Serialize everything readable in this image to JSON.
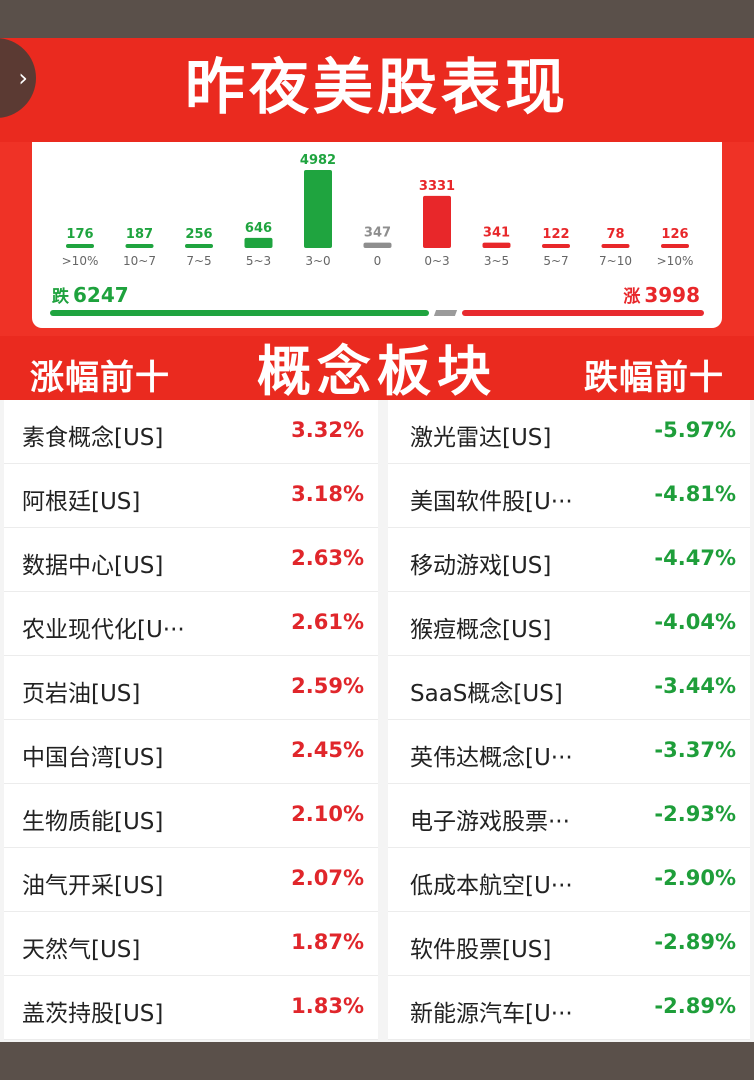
{
  "header": {
    "title": "昨夜美股表现",
    "back_label": "›"
  },
  "colors": {
    "red": "#e8272a",
    "green": "#1fa43f",
    "gray": "#8e8e8e",
    "banner": "#ea2a1f"
  },
  "summary": {
    "down_label": "跌",
    "down_count": "6247",
    "up_label": "涨",
    "up_count": "3998",
    "flat_count": 347
  },
  "chart_data": {
    "type": "bar",
    "categories": [
      ">10%",
      "10~7",
      "7~5",
      "5~3",
      "3~0",
      "0",
      "0~3",
      "3~5",
      "5~7",
      "7~10",
      ">10%"
    ],
    "values": [
      176,
      187,
      256,
      646,
      4982,
      347,
      3331,
      341,
      122,
      78,
      126
    ],
    "bar_colors": [
      "green",
      "green",
      "green",
      "green",
      "green",
      "gray",
      "red",
      "red",
      "red",
      "red",
      "red"
    ],
    "ylim": [
      0,
      4982
    ]
  },
  "concepts": {
    "left_title": "涨幅前十",
    "center_title": "概念板块",
    "right_title": "跌幅前十",
    "gainers": [
      {
        "name": "素食概念[US]",
        "pct": "3.32%"
      },
      {
        "name": "阿根廷[US]",
        "pct": "3.18%"
      },
      {
        "name": "数据中心[US]",
        "pct": "2.63%"
      },
      {
        "name": "农业现代化[U···",
        "pct": "2.61%"
      },
      {
        "name": "页岩油[US]",
        "pct": "2.59%"
      },
      {
        "name": "中国台湾[US]",
        "pct": "2.45%"
      },
      {
        "name": "生物质能[US]",
        "pct": "2.10%"
      },
      {
        "name": "油气开采[US]",
        "pct": "2.07%"
      },
      {
        "name": "天然气[US]",
        "pct": "1.87%"
      },
      {
        "name": "盖茨持股[US]",
        "pct": "1.83%"
      }
    ],
    "losers": [
      {
        "name": "激光雷达[US]",
        "pct": "-5.97%"
      },
      {
        "name": "美国软件股[U···",
        "pct": "-4.81%"
      },
      {
        "name": "移动游戏[US]",
        "pct": "-4.47%"
      },
      {
        "name": "猴痘概念[US]",
        "pct": "-4.04%"
      },
      {
        "name": "SaaS概念[US]",
        "pct": "-3.44%"
      },
      {
        "name": "英伟达概念[U···",
        "pct": "-3.37%"
      },
      {
        "name": "电子游戏股票···",
        "pct": "-2.93%"
      },
      {
        "name": "低成本航空[U···",
        "pct": "-2.90%"
      },
      {
        "name": "软件股票[US]",
        "pct": "-2.89%"
      },
      {
        "name": "新能源汽车[U···",
        "pct": "-2.89%"
      }
    ]
  }
}
